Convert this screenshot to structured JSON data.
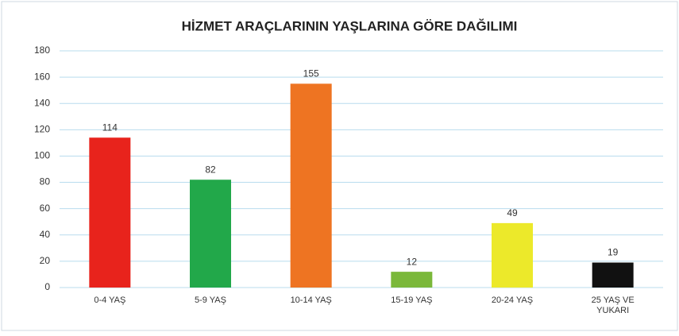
{
  "chart_data": {
    "type": "bar",
    "title": "HİZMET ARAÇLARININ YAŞLARINA GÖRE DAĞILIMI",
    "categories": [
      "0-4 YAŞ",
      "5-9 YAŞ",
      "10-14 YAŞ",
      "15-19 YAŞ",
      "20-24 YAŞ",
      "25 YAŞ VE YUKARI"
    ],
    "values": [
      114,
      82,
      155,
      12,
      49,
      19
    ],
    "colors": [
      "#e8231c",
      "#22a84a",
      "#ee7422",
      "#7ab83a",
      "#ece92a",
      "#111111"
    ],
    "ylim": [
      0,
      180
    ],
    "yticks": [
      0,
      20,
      40,
      60,
      80,
      100,
      120,
      140,
      160,
      180
    ],
    "grid": true
  }
}
